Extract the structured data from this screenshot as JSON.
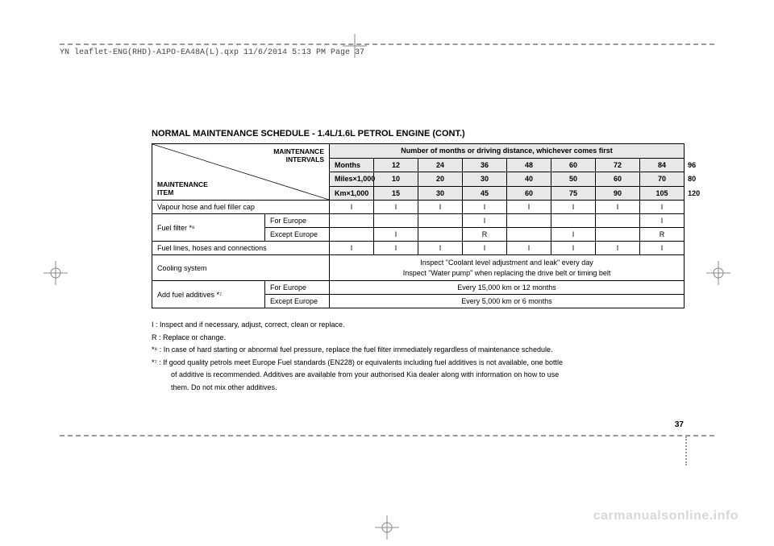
{
  "header_text": "YN leaflet-ENG(RHD)-A1PO-EA48A(L).qxp  11/6/2014  5:13 PM  Page 37",
  "title": "NORMAL MAINTENANCE SCHEDULE - 1.4L/1.6L PETROL ENGINE (CONT.)",
  "diag_top": "MAINTENANCE\nINTERVALS",
  "diag_bot": "MAINTENANCE\nITEM",
  "col_header": "Number of months or driving distance, whichever comes first",
  "row_labels": {
    "months": "Months",
    "miles": "Miles×1,000",
    "km": "Km×1,000"
  },
  "months": [
    "12",
    "24",
    "36",
    "48",
    "60",
    "72",
    "84",
    "96"
  ],
  "miles": [
    "10",
    "20",
    "30",
    "40",
    "50",
    "60",
    "70",
    "80"
  ],
  "km": [
    "15",
    "30",
    "45",
    "60",
    "75",
    "90",
    "105",
    "120"
  ],
  "rows": {
    "vapour": {
      "label": "Vapour hose and fuel filler cap",
      "vals": [
        "I",
        "I",
        "I",
        "I",
        "I",
        "I",
        "I",
        "I"
      ]
    },
    "fuelfilter": {
      "label": "Fuel filter *⁶",
      "sub1_label": "For Europe",
      "sub1_vals": [
        "",
        "",
        "",
        "I",
        "",
        "",
        "",
        "I"
      ],
      "sub2_label": "Except Europe",
      "sub2_vals": [
        "",
        "I",
        "",
        "R",
        "",
        "I",
        "",
        "R"
      ]
    },
    "fuellines": {
      "label": "Fuel lines, hoses and connections",
      "vals": [
        "I",
        "I",
        "I",
        "I",
        "I",
        "I",
        "I",
        "I"
      ]
    },
    "cooling": {
      "label": "Cooling system",
      "line1": "Inspect \"Coolant level adjustment and leak\" every day",
      "line2": "Inspect \"Water pump\" when replacing the drive belt or timing belt"
    },
    "additives": {
      "label": "Add fuel additives *⁷",
      "sub1_label": "For Europe",
      "sub1_text": "Every 15,000 km or 12 months",
      "sub2_label": "Except Europe",
      "sub2_text": "Every 5,000 km or 6 months"
    }
  },
  "notes": {
    "n1": "I : Inspect and if necessary, adjust, correct, clean or replace.",
    "n2": "R : Replace or change.",
    "n3": "*⁶ : In case of hard starting or abnormal fuel pressure, replace the fuel filter immediately regardless of maintenance schedule.",
    "n4a": "*⁷ : If good quality petrols meet Europe Fuel standards (EN228) or equivalents including fuel additives is not available, one bottle",
    "n4b": "of additive is recommended. Additives are available from your authorised Kia dealer along with information on how to use",
    "n4c": "them. Do not mix other additives."
  },
  "page_num": "37",
  "watermark": "carmanualsonline.info",
  "colors": {
    "header_bg": "#e8e8e8",
    "dash": "#999999",
    "watermark": "#d9d9d9"
  }
}
